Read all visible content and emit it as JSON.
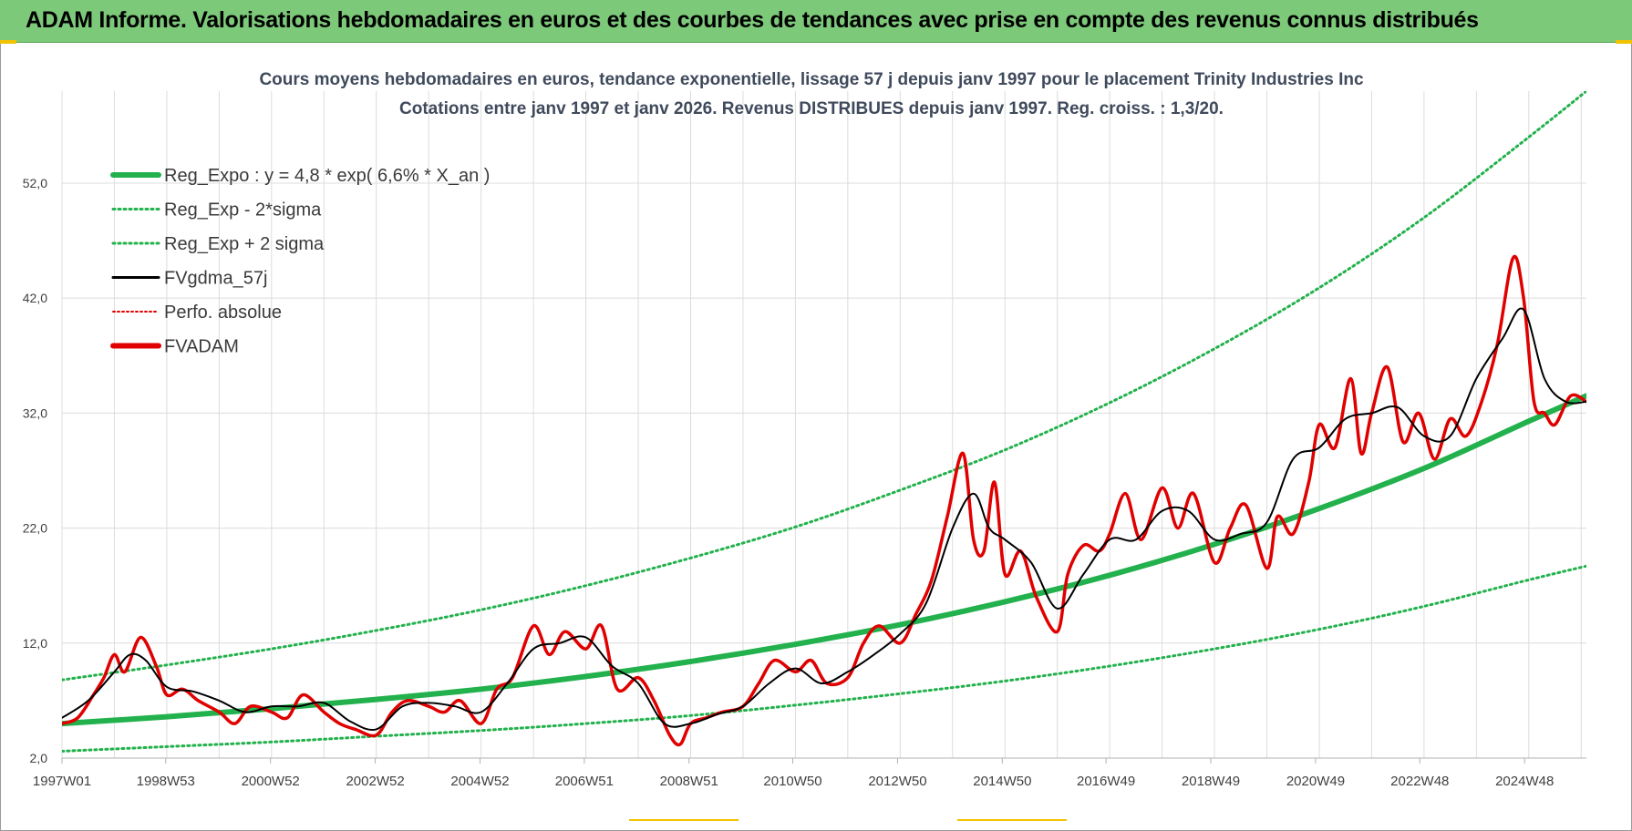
{
  "header": {
    "title": "ADAM Informe. Valorisations hebdomadaires en euros et des courbes de tendances avec prise en compte des revenus connus distribués"
  },
  "chart_data": {
    "type": "line",
    "title_line1": "Cours moyens hebdomadaires en euros, tendance exponentielle, lissage 57 j depuis janv 1997 pour le placement Trinity Industries Inc",
    "title_line2": "Cotations entre janv 1997 et janv 2026. Revenus DISTRIBUES depuis janv 1997. Reg. croiss. : 1,3/20.",
    "x_range": [
      1997.0,
      2026.1
    ],
    "ylim": [
      2,
      60
    ],
    "y_ticks": [
      2,
      12,
      22,
      32,
      42,
      52
    ],
    "y_tick_labels": [
      "2,0",
      "12,0",
      "22,0",
      "32,0",
      "42,0",
      "52,0"
    ],
    "x_ticks": [
      {
        "year": 1997.0,
        "label": "1997W01"
      },
      {
        "year": 1998.98,
        "label": "1998W53"
      },
      {
        "year": 2000.98,
        "label": "2000W52"
      },
      {
        "year": 2002.98,
        "label": "2002W52"
      },
      {
        "year": 2004.98,
        "label": "2004W52"
      },
      {
        "year": 2006.97,
        "label": "2006W51"
      },
      {
        "year": 2008.97,
        "label": "2008W51"
      },
      {
        "year": 2010.95,
        "label": "2010W50"
      },
      {
        "year": 2012.95,
        "label": "2012W50"
      },
      {
        "year": 2014.95,
        "label": "2014W50"
      },
      {
        "year": 2016.93,
        "label": "2016W49"
      },
      {
        "year": 2018.93,
        "label": "2018W49"
      },
      {
        "year": 2020.93,
        "label": "2020W49"
      },
      {
        "year": 2022.92,
        "label": "2022W48"
      },
      {
        "year": 2024.92,
        "label": "2024W48"
      }
    ],
    "grid": "vertical-and-horizontal",
    "legend_position": "top-left",
    "legend": [
      {
        "key": "reg_expo",
        "label": "Reg_Expo : y = 4,8 * exp( 6,6% *  X_an )",
        "color": "#22b14c",
        "style": "solid-thick"
      },
      {
        "key": "reg_minus",
        "label": "Reg_Exp - 2*sigma",
        "color": "#22b14c",
        "style": "dotted"
      },
      {
        "key": "reg_plus",
        "label": "Reg_Exp + 2 sigma",
        "color": "#22b14c",
        "style": "dotted"
      },
      {
        "key": "fvgdma",
        "label": "FVgdma_57j",
        "color": "#000000",
        "style": "solid"
      },
      {
        "key": "perfo",
        "label": "Perfo. absolue",
        "color": "#e00000",
        "style": "dotted"
      },
      {
        "key": "fvadam",
        "label": "FVADAM",
        "color": "#e00000",
        "style": "solid-thick"
      }
    ],
    "series": [
      {
        "name": "Reg_Expo : y = 4,8 * exp( 6,6% *  X_an )",
        "x": [
          1997,
          1999,
          2001,
          2003,
          2005,
          2007,
          2009,
          2011,
          2013,
          2015,
          2017,
          2019,
          2021,
          2023,
          2025,
          2026.1
        ],
        "values": [
          5.0,
          5.6,
          6.3,
          7.1,
          8.0,
          9.1,
          10.4,
          11.9,
          13.6,
          15.6,
          17.9,
          20.6,
          23.7,
          27.2,
          31.3,
          33.5
        ]
      },
      {
        "name": "Reg_Exp - 2*sigma",
        "x": [
          1997,
          1999,
          2001,
          2003,
          2005,
          2007,
          2009,
          2011,
          2013,
          2015,
          2017,
          2019,
          2021,
          2023,
          2025,
          2026.1
        ],
        "values": [
          2.6,
          3.0,
          3.4,
          3.9,
          4.4,
          5.0,
          5.7,
          6.6,
          7.6,
          8.7,
          10.0,
          11.5,
          13.2,
          15.2,
          17.5,
          18.7
        ]
      },
      {
        "name": "Reg_Exp + 2 sigma",
        "x": [
          1997,
          1999,
          2001,
          2003,
          2005,
          2007,
          2009,
          2011,
          2013,
          2015,
          2017,
          2019,
          2021,
          2023,
          2025,
          2026.1
        ],
        "values": [
          8.8,
          10.1,
          11.5,
          13.1,
          14.9,
          17.0,
          19.4,
          22.1,
          25.3,
          28.8,
          32.9,
          37.6,
          42.9,
          49.0,
          56.0,
          60.0
        ]
      },
      {
        "name": "FVgdma_57j",
        "x": [
          1997.0,
          1997.5,
          1998.0,
          1998.3,
          1998.6,
          1999.0,
          1999.5,
          2000.0,
          2000.5,
          2001.0,
          2001.5,
          2002.0,
          2002.5,
          2003.0,
          2003.5,
          2004.0,
          2004.5,
          2005.0,
          2005.5,
          2006.0,
          2006.5,
          2007.0,
          2007.5,
          2008.0,
          2008.5,
          2009.0,
          2009.5,
          2010.0,
          2010.5,
          2011.0,
          2011.5,
          2012.0,
          2012.5,
          2013.0,
          2013.5,
          2014.0,
          2014.4,
          2014.7,
          2015.0,
          2015.5,
          2016.0,
          2016.5,
          2017.0,
          2017.5,
          2018.0,
          2018.5,
          2019.0,
          2019.5,
          2020.0,
          2020.5,
          2021.0,
          2021.5,
          2022.0,
          2022.5,
          2023.0,
          2023.5,
          2024.0,
          2024.5,
          2024.9,
          2025.3,
          2025.7,
          2026.1
        ],
        "values": [
          5.5,
          7.0,
          9.5,
          11.0,
          10.5,
          8.2,
          7.8,
          7.0,
          6.0,
          6.5,
          6.5,
          6.8,
          5.2,
          4.5,
          6.5,
          6.8,
          6.5,
          6.0,
          8.5,
          11.5,
          12.0,
          12.5,
          10.0,
          8.5,
          5.0,
          5.0,
          5.8,
          6.5,
          8.5,
          9.8,
          8.5,
          9.5,
          11.0,
          12.8,
          15.5,
          22.0,
          25.0,
          22.0,
          21.0,
          19.0,
          15.0,
          18.0,
          21.0,
          21.0,
          23.5,
          23.5,
          21.0,
          21.5,
          22.5,
          28.0,
          29.0,
          31.5,
          32.0,
          32.5,
          30.0,
          30.0,
          35.0,
          38.5,
          41.0,
          35.0,
          33.0,
          33.0
        ]
      },
      {
        "name": "FVADAM",
        "x": [
          1997.0,
          1997.3,
          1997.6,
          1997.8,
          1998.0,
          1998.2,
          1998.5,
          1998.8,
          1999.0,
          1999.3,
          1999.6,
          2000.0,
          2000.3,
          2000.6,
          2001.0,
          2001.3,
          2001.6,
          2002.0,
          2002.3,
          2002.6,
          2003.0,
          2003.3,
          2003.6,
          2004.0,
          2004.3,
          2004.6,
          2005.0,
          2005.3,
          2005.6,
          2006.0,
          2006.3,
          2006.6,
          2007.0,
          2007.3,
          2007.6,
          2008.0,
          2008.3,
          2008.6,
          2008.8,
          2009.0,
          2009.3,
          2009.6,
          2010.0,
          2010.3,
          2010.6,
          2011.0,
          2011.3,
          2011.6,
          2012.0,
          2012.3,
          2012.6,
          2013.0,
          2013.3,
          2013.6,
          2013.9,
          2014.2,
          2014.4,
          2014.6,
          2014.8,
          2015.0,
          2015.3,
          2015.6,
          2016.0,
          2016.2,
          2016.5,
          2016.8,
          2017.0,
          2017.3,
          2017.6,
          2018.0,
          2018.3,
          2018.6,
          2019.0,
          2019.3,
          2019.6,
          2020.0,
          2020.2,
          2020.5,
          2020.8,
          2021.0,
          2021.3,
          2021.6,
          2021.8,
          2022.0,
          2022.3,
          2022.6,
          2022.9,
          2023.2,
          2023.5,
          2023.8,
          2024.1,
          2024.4,
          2024.7,
          2024.9,
          2025.1,
          2025.3,
          2025.5,
          2025.8,
          2026.1
        ],
        "values": [
          5.0,
          5.5,
          7.5,
          9.0,
          11.0,
          9.5,
          12.5,
          10.0,
          7.5,
          8.0,
          7.0,
          6.0,
          5.0,
          6.5,
          6.0,
          5.5,
          7.5,
          6.0,
          5.0,
          4.5,
          4.0,
          6.0,
          7.0,
          6.5,
          6.0,
          7.0,
          5.0,
          8.0,
          9.0,
          13.5,
          11.0,
          13.0,
          11.5,
          13.5,
          8.0,
          9.0,
          7.0,
          4.0,
          3.2,
          5.0,
          5.5,
          6.0,
          6.5,
          8.5,
          10.5,
          9.5,
          10.5,
          8.5,
          9.0,
          12.0,
          13.5,
          12.0,
          14.5,
          17.5,
          23.0,
          28.5,
          21.0,
          20.0,
          26.0,
          18.0,
          20.0,
          16.0,
          13.0,
          18.0,
          20.5,
          20.0,
          21.5,
          25.0,
          21.0,
          25.5,
          22.0,
          25.0,
          19.0,
          22.0,
          24.0,
          18.5,
          23.0,
          21.5,
          26.0,
          31.0,
          29.0,
          35.0,
          28.5,
          32.0,
          36.0,
          29.5,
          32.0,
          28.0,
          31.5,
          30.0,
          33.0,
          38.0,
          45.5,
          42.0,
          33.0,
          32.0,
          31.0,
          33.5,
          33.0
        ]
      }
    ]
  }
}
